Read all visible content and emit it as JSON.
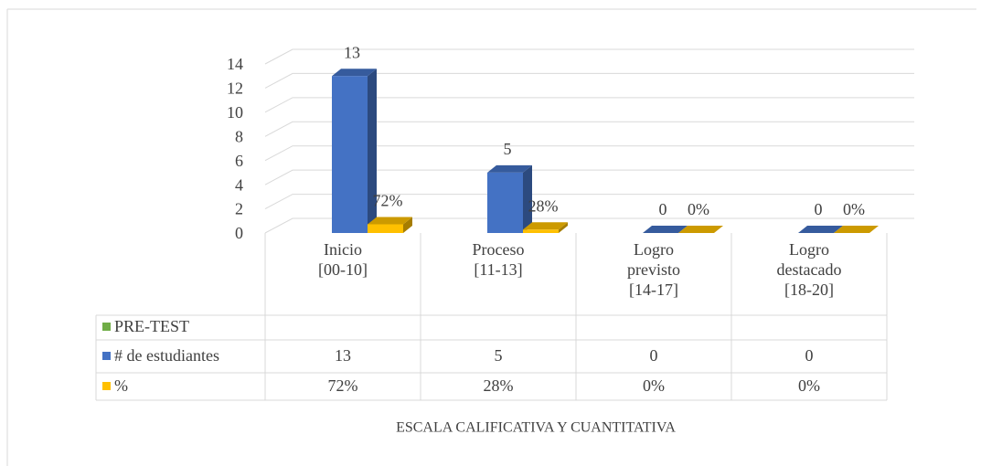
{
  "chart_data": {
    "type": "bar3d",
    "categories": [
      "Inicio [00-10]",
      "Proceso [11-13]",
      "Logro previsto [14-17]",
      "Logro destacado [18-20]"
    ],
    "series": [
      {
        "name": "PRE-TEST",
        "color": "#70ad47",
        "values": [
          null,
          null,
          null,
          null
        ]
      },
      {
        "name": "# de estudiantes",
        "color": "#4472c4",
        "values": [
          13,
          5,
          0,
          0
        ]
      },
      {
        "name": "%",
        "color": "#ffc000",
        "values": [
          0.72,
          0.28,
          0,
          0
        ],
        "value_labels": [
          "72%",
          "28%",
          "0%",
          "0%"
        ]
      }
    ],
    "ylim": [
      0,
      14
    ],
    "yticks": [
      0,
      2,
      4,
      6,
      8,
      10,
      12,
      14
    ],
    "grid": true,
    "x_label": "ESCALA CALIFICATIVA Y CUANTITATIVA"
  }
}
